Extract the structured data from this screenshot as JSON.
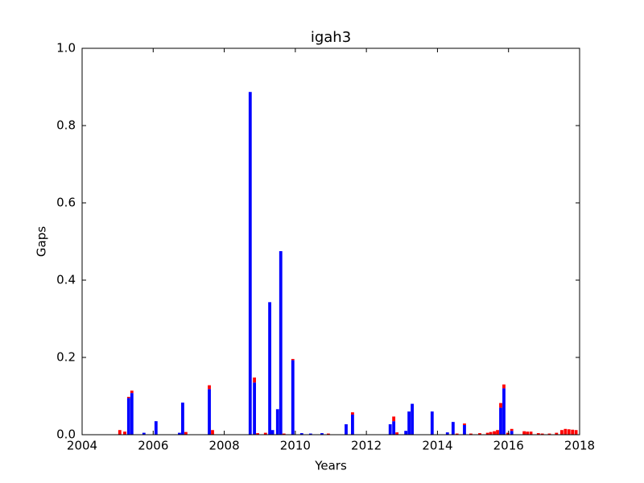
{
  "chart_data": {
    "type": "stacked_bar",
    "title": "igah3",
    "x_label": "Years",
    "y_label": "Gaps",
    "x": [
      2005.06,
      2005.2,
      2005.31,
      2005.4,
      2005.74,
      2006.08,
      2006.74,
      2006.83,
      2006.92,
      2007.58,
      2007.67,
      2008.73,
      2008.85,
      2008.94,
      2009.16,
      2009.28,
      2009.36,
      2009.5,
      2009.59,
      2009.68,
      2009.93,
      2010.18,
      2010.43,
      2010.75,
      2010.93,
      2011.43,
      2011.61,
      2012.67,
      2012.77,
      2012.86,
      2013.11,
      2013.2,
      2013.29,
      2013.85,
      2014.28,
      2014.44,
      2014.55,
      2014.76,
      2014.94,
      2015.19,
      2015.41,
      2015.5,
      2015.6,
      2015.69,
      2015.78,
      2015.87,
      2015.98,
      2016.09,
      2016.44,
      2016.53,
      2016.63,
      2016.84,
      2016.95,
      2017.15,
      2017.35,
      2017.5,
      2017.6,
      2017.7,
      2017.8,
      2017.9
    ],
    "series": [
      {
        "color": "#0000ff",
        "values": [
          0,
          0,
          0.095,
          0.108,
          0.005,
          0.035,
          0.005,
          0.083,
          0,
          0.118,
          0,
          0.887,
          0.135,
          0,
          0,
          0.343,
          0.012,
          0.066,
          0.475,
          0,
          0.193,
          0.004,
          0.003,
          0.004,
          0,
          0.027,
          0.052,
          0.027,
          0.035,
          0,
          0.01,
          0.06,
          0.08,
          0.06,
          0.006,
          0.033,
          0,
          0.025,
          0,
          0,
          0,
          0,
          0,
          0,
          0.07,
          0.12,
          0,
          0.01,
          0,
          0,
          0,
          0,
          0,
          0,
          0,
          0,
          0,
          0,
          0,
          0
        ]
      },
      {
        "color": "#ff0000",
        "values": [
          0.012,
          0.008,
          0.003,
          0.006,
          0,
          0,
          0,
          0,
          0.007,
          0.01,
          0.012,
          0,
          0.013,
          0.004,
          0.005,
          0,
          0,
          0,
          0,
          0.003,
          0.003,
          0,
          0,
          0,
          0.003,
          0,
          0.006,
          0,
          0.012,
          0.006,
          0,
          0,
          0,
          0,
          0,
          0,
          0.003,
          0.004,
          0.003,
          0.004,
          0.005,
          0.007,
          0.009,
          0.012,
          0.012,
          0.01,
          0.005,
          0.005,
          0.009,
          0.008,
          0.008,
          0.004,
          0.003,
          0.003,
          0.005,
          0.012,
          0.015,
          0.014,
          0.013,
          0.012
        ]
      }
    ],
    "xlim": [
      2004,
      2018
    ],
    "xticks": [
      2004,
      2006,
      2008,
      2010,
      2012,
      2014,
      2016,
      2018
    ],
    "ylim": [
      0,
      1
    ],
    "yticks": [
      {
        "value": 0,
        "label": "0.0"
      },
      0.2,
      0.4,
      0.6,
      0.8,
      {
        "value": 1,
        "label": "1.0"
      }
    ]
  }
}
